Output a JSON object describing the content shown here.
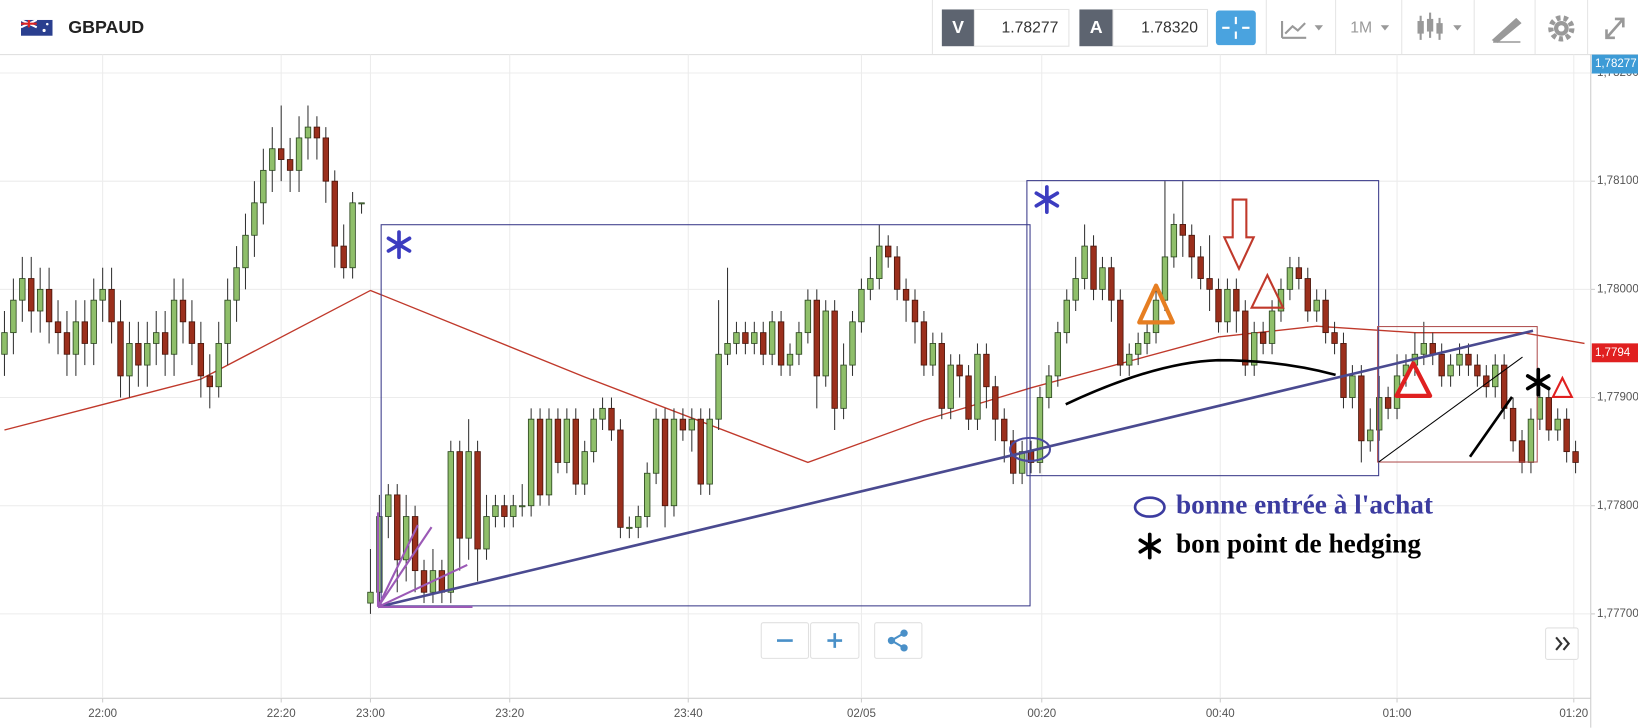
{
  "toolbar": {
    "symbol": "GBPAUD",
    "bid_label": "V",
    "bid": "1.78277",
    "ask_label": "A",
    "ask": "1.78320",
    "timeframe": "1M"
  },
  "chart_data": {
    "type": "candlestick",
    "up_color": "#8fbf6a",
    "down_color": "#9b2f1c",
    "xlim": [
      -0.5,
      177.7
    ],
    "xticks": [
      {
        "value": 11,
        "label": "22:00"
      },
      {
        "value": 31,
        "label": "22:20"
      },
      {
        "value": 41,
        "label": "23:00"
      },
      {
        "value": 56.6,
        "label": "23:20"
      },
      {
        "value": 76.6,
        "label": "23:40"
      },
      {
        "value": 96,
        "label": "02/05"
      },
      {
        "value": 116.2,
        "label": "00:20"
      },
      {
        "value": 136.2,
        "label": "00:40"
      },
      {
        "value": 156,
        "label": "01:00"
      },
      {
        "value": 175.8,
        "label": "01:20"
      }
    ],
    "ylim": [
      1.77622,
      1.78217
    ],
    "yticks": [
      {
        "value": 1.777,
        "label": "1,77700"
      },
      {
        "value": 1.778,
        "label": "1,77800"
      },
      {
        "value": 1.779,
        "label": "1,77900"
      },
      {
        "value": 1.78,
        "label": "1,78000"
      },
      {
        "value": 1.781,
        "label": "1,78100"
      },
      {
        "value": 1.782,
        "label": "1,78200"
      }
    ],
    "grid": true,
    "overlay": {
      "color": "#c0392b",
      "x": [
        0,
        22,
        41,
        65,
        90,
        103,
        115,
        136,
        147,
        158,
        170,
        177
      ],
      "values": [
        1.7787,
        1.77917,
        1.77999,
        1.77919,
        1.7784,
        1.77879,
        1.77909,
        1.77956,
        1.77966,
        1.7796,
        1.7796,
        1.7795
      ]
    },
    "ohlc": [
      [
        1.7794,
        1.7798,
        1.7792,
        1.7796
      ],
      [
        1.7796,
        1.7801,
        1.7794,
        1.7799
      ],
      [
        1.7799,
        1.7803,
        1.7797,
        1.7801
      ],
      [
        1.7801,
        1.7803,
        1.7796,
        1.7798
      ],
      [
        1.7798,
        1.7802,
        1.7796,
        1.78
      ],
      [
        1.78,
        1.7802,
        1.7795,
        1.7797
      ],
      [
        1.7797,
        1.7799,
        1.7794,
        1.7796
      ],
      [
        1.7796,
        1.7798,
        1.7792,
        1.7794
      ],
      [
        1.7794,
        1.7799,
        1.7792,
        1.7797
      ],
      [
        1.7797,
        1.7799,
        1.7793,
        1.7795
      ],
      [
        1.7795,
        1.7801,
        1.7793,
        1.7799
      ],
      [
        1.7799,
        1.7802,
        1.7797,
        1.78
      ],
      [
        1.78,
        1.7802,
        1.7795,
        1.7797
      ],
      [
        1.7797,
        1.7799,
        1.779,
        1.7792
      ],
      [
        1.7792,
        1.7797,
        1.779,
        1.7795
      ],
      [
        1.7795,
        1.7797,
        1.7791,
        1.7793
      ],
      [
        1.7793,
        1.7797,
        1.7791,
        1.7795
      ],
      [
        1.7795,
        1.7798,
        1.7793,
        1.7796
      ],
      [
        1.7796,
        1.7798,
        1.7792,
        1.7794
      ],
      [
        1.7794,
        1.7801,
        1.7792,
        1.7799
      ],
      [
        1.7799,
        1.7801,
        1.7795,
        1.7797
      ],
      [
        1.7797,
        1.7799,
        1.7793,
        1.7795
      ],
      [
        1.7795,
        1.7797,
        1.779,
        1.7792
      ],
      [
        1.7792,
        1.7794,
        1.7789,
        1.7791
      ],
      [
        1.7791,
        1.7797,
        1.779,
        1.7795
      ],
      [
        1.7795,
        1.7801,
        1.7793,
        1.7799
      ],
      [
        1.7799,
        1.7804,
        1.7797,
        1.7802
      ],
      [
        1.7802,
        1.7807,
        1.78,
        1.7805
      ],
      [
        1.7805,
        1.781,
        1.7803,
        1.7808
      ],
      [
        1.7808,
        1.7813,
        1.7806,
        1.7811
      ],
      [
        1.7811,
        1.7815,
        1.7809,
        1.7813
      ],
      [
        1.7813,
        1.7817,
        1.781,
        1.7812
      ],
      [
        1.7812,
        1.7814,
        1.7809,
        1.7811
      ],
      [
        1.7811,
        1.7816,
        1.7809,
        1.7814
      ],
      [
        1.7814,
        1.7817,
        1.7812,
        1.7815
      ],
      [
        1.7815,
        1.7816,
        1.7812,
        1.7814
      ],
      [
        1.7814,
        1.7815,
        1.7808,
        1.781
      ],
      [
        1.781,
        1.7811,
        1.7802,
        1.7804
      ],
      [
        1.7804,
        1.7806,
        1.7801,
        1.7802
      ],
      [
        1.7802,
        1.7809,
        1.7801,
        1.7808
      ],
      [
        1.7808,
        1.7808,
        1.7807,
        1.7808
      ],
      [
        1.7771,
        1.7776,
        1.777,
        1.7772
      ],
      [
        1.7772,
        1.7781,
        1.7771,
        1.7779
      ],
      [
        1.7779,
        1.7782,
        1.7777,
        1.7781
      ],
      [
        1.7781,
        1.7782,
        1.7772,
        1.7775
      ],
      [
        1.7775,
        1.7781,
        1.7773,
        1.7779
      ],
      [
        1.7779,
        1.778,
        1.7772,
        1.7774
      ],
      [
        1.7774,
        1.7775,
        1.7771,
        1.7772
      ],
      [
        1.7772,
        1.7776,
        1.7771,
        1.7774
      ],
      [
        1.7774,
        1.7775,
        1.7771,
        1.7772
      ],
      [
        1.7772,
        1.7786,
        1.7771,
        1.7785
      ],
      [
        1.7785,
        1.7786,
        1.7774,
        1.7777
      ],
      [
        1.7777,
        1.7788,
        1.7775,
        1.7785
      ],
      [
        1.7785,
        1.7786,
        1.7773,
        1.7776
      ],
      [
        1.7776,
        1.7781,
        1.7775,
        1.7779
      ],
      [
        1.7779,
        1.7781,
        1.7778,
        1.778
      ],
      [
        1.778,
        1.7781,
        1.7778,
        1.7779
      ],
      [
        1.7779,
        1.7781,
        1.7778,
        1.778
      ],
      [
        1.778,
        1.7782,
        1.7779,
        1.778
      ],
      [
        1.778,
        1.7789,
        1.7779,
        1.7788
      ],
      [
        1.7788,
        1.7789,
        1.778,
        1.7781
      ],
      [
        1.7781,
        1.7789,
        1.778,
        1.7788
      ],
      [
        1.7788,
        1.7789,
        1.7783,
        1.7784
      ],
      [
        1.7784,
        1.7789,
        1.7783,
        1.7788
      ],
      [
        1.7788,
        1.7789,
        1.7781,
        1.7782
      ],
      [
        1.7782,
        1.7786,
        1.7781,
        1.7785
      ],
      [
        1.7785,
        1.7789,
        1.7784,
        1.7788
      ],
      [
        1.7788,
        1.779,
        1.7787,
        1.7789
      ],
      [
        1.7789,
        1.779,
        1.7786,
        1.7787
      ],
      [
        1.7787,
        1.7788,
        1.7777,
        1.7778
      ],
      [
        1.7778,
        1.7779,
        1.7777,
        1.7778
      ],
      [
        1.7778,
        1.778,
        1.7777,
        1.7779
      ],
      [
        1.7779,
        1.7784,
        1.7778,
        1.7783
      ],
      [
        1.7783,
        1.7789,
        1.7782,
        1.7788
      ],
      [
        1.7788,
        1.7789,
        1.7778,
        1.778
      ],
      [
        1.778,
        1.7789,
        1.7779,
        1.7788
      ],
      [
        1.7788,
        1.7789,
        1.7786,
        1.7787
      ],
      [
        1.7787,
        1.7789,
        1.7785,
        1.7788
      ],
      [
        1.7788,
        1.7789,
        1.7781,
        1.7782
      ],
      [
        1.7782,
        1.7789,
        1.7781,
        1.7788
      ],
      [
        1.7788,
        1.7799,
        1.7787,
        1.7794
      ],
      [
        1.7794,
        1.7802,
        1.7793,
        1.7795
      ],
      [
        1.7795,
        1.7797,
        1.7794,
        1.7796
      ],
      [
        1.7796,
        1.7797,
        1.7794,
        1.7795
      ],
      [
        1.7795,
        1.7797,
        1.7794,
        1.7796
      ],
      [
        1.7796,
        1.7797,
        1.7793,
        1.7794
      ],
      [
        1.7794,
        1.7798,
        1.7793,
        1.7797
      ],
      [
        1.7797,
        1.7798,
        1.7792,
        1.7793
      ],
      [
        1.7793,
        1.7795,
        1.7792,
        1.7794
      ],
      [
        1.7794,
        1.7797,
        1.7793,
        1.7796
      ],
      [
        1.7796,
        1.78,
        1.7795,
        1.7799
      ],
      [
        1.7799,
        1.78,
        1.7789,
        1.7792
      ],
      [
        1.7792,
        1.7799,
        1.7791,
        1.7798
      ],
      [
        1.7798,
        1.7799,
        1.7787,
        1.7789
      ],
      [
        1.7789,
        1.7795,
        1.7788,
        1.7793
      ],
      [
        1.7793,
        1.7798,
        1.7792,
        1.7797
      ],
      [
        1.7797,
        1.7801,
        1.7796,
        1.78
      ],
      [
        1.78,
        1.7803,
        1.7799,
        1.7801
      ],
      [
        1.7801,
        1.7806,
        1.78,
        1.7804
      ],
      [
        1.7804,
        1.7805,
        1.7802,
        1.7803
      ],
      [
        1.7803,
        1.7804,
        1.7799,
        1.78
      ],
      [
        1.78,
        1.7801,
        1.7797,
        1.7799
      ],
      [
        1.7799,
        1.78,
        1.7795,
        1.7797
      ],
      [
        1.7797,
        1.7798,
        1.7792,
        1.7793
      ],
      [
        1.7793,
        1.7796,
        1.7792,
        1.7795
      ],
      [
        1.7795,
        1.7796,
        1.7788,
        1.7789
      ],
      [
        1.7789,
        1.7794,
        1.7788,
        1.7793
      ],
      [
        1.7793,
        1.7794,
        1.779,
        1.7792
      ],
      [
        1.7792,
        1.7793,
        1.7787,
        1.7788
      ],
      [
        1.7788,
        1.7795,
        1.7787,
        1.7794
      ],
      [
        1.7794,
        1.7795,
        1.7789,
        1.7791
      ],
      [
        1.7791,
        1.7792,
        1.7786,
        1.7788
      ],
      [
        1.7788,
        1.7789,
        1.7784,
        1.7786
      ],
      [
        1.7786,
        1.7787,
        1.7782,
        1.7783
      ],
      [
        1.7783,
        1.7786,
        1.7782,
        1.7785
      ],
      [
        1.7785,
        1.7786,
        1.7783,
        1.7784
      ],
      [
        1.7784,
        1.7791,
        1.7783,
        1.779
      ],
      [
        1.779,
        1.7793,
        1.7789,
        1.7792
      ],
      [
        1.7792,
        1.7797,
        1.7791,
        1.7796
      ],
      [
        1.7796,
        1.78,
        1.7795,
        1.7799
      ],
      [
        1.7799,
        1.7803,
        1.7798,
        1.7801
      ],
      [
        1.7801,
        1.7806,
        1.78,
        1.7804
      ],
      [
        1.7804,
        1.7805,
        1.7799,
        1.78
      ],
      [
        1.78,
        1.7803,
        1.7799,
        1.7802
      ],
      [
        1.7802,
        1.7803,
        1.7797,
        1.7799
      ],
      [
        1.7799,
        1.78,
        1.7792,
        1.7793
      ],
      [
        1.7793,
        1.7795,
        1.7792,
        1.7794
      ],
      [
        1.7794,
        1.7796,
        1.7793,
        1.7795
      ],
      [
        1.7795,
        1.7797,
        1.7794,
        1.7796
      ],
      [
        1.7796,
        1.78,
        1.7795,
        1.7799
      ],
      [
        1.7799,
        1.781,
        1.7798,
        1.7803
      ],
      [
        1.7803,
        1.7807,
        1.7802,
        1.7806
      ],
      [
        1.7806,
        1.781,
        1.7803,
        1.7805
      ],
      [
        1.7805,
        1.7806,
        1.7801,
        1.7803
      ],
      [
        1.7803,
        1.7804,
        1.78,
        1.7801
      ],
      [
        1.7801,
        1.7805,
        1.7798,
        1.78
      ],
      [
        1.78,
        1.7801,
        1.7796,
        1.7797
      ],
      [
        1.7797,
        1.7801,
        1.7796,
        1.78
      ],
      [
        1.78,
        1.7801,
        1.7796,
        1.7798
      ],
      [
        1.7798,
        1.7799,
        1.7792,
        1.7793
      ],
      [
        1.7793,
        1.7797,
        1.7792,
        1.7796
      ],
      [
        1.7796,
        1.7797,
        1.7794,
        1.7795
      ],
      [
        1.7795,
        1.7799,
        1.7794,
        1.7798
      ],
      [
        1.7798,
        1.7801,
        1.7797,
        1.78
      ],
      [
        1.78,
        1.7803,
        1.7799,
        1.7802
      ],
      [
        1.7802,
        1.7803,
        1.78,
        1.7801
      ],
      [
        1.7801,
        1.7802,
        1.7797,
        1.7798
      ],
      [
        1.7798,
        1.78,
        1.7797,
        1.7799
      ],
      [
        1.7799,
        1.78,
        1.7795,
        1.7796
      ],
      [
        1.7796,
        1.7797,
        1.7794,
        1.7795
      ],
      [
        1.7795,
        1.7796,
        1.7789,
        1.779
      ],
      [
        1.779,
        1.7793,
        1.7789,
        1.7792
      ],
      [
        1.7792,
        1.7793,
        1.7784,
        1.7786
      ],
      [
        1.7786,
        1.7789,
        1.7785,
        1.7787
      ],
      [
        1.7787,
        1.7792,
        1.7786,
        1.779
      ],
      [
        1.779,
        1.7791,
        1.7788,
        1.7789
      ],
      [
        1.7789,
        1.7794,
        1.7788,
        1.7792
      ],
      [
        1.7792,
        1.7794,
        1.7791,
        1.7793
      ],
      [
        1.7793,
        1.7796,
        1.7792,
        1.7794
      ],
      [
        1.7794,
        1.7797,
        1.7793,
        1.7795
      ],
      [
        1.7795,
        1.7796,
        1.7793,
        1.7794
      ],
      [
        1.7794,
        1.7795,
        1.7791,
        1.7792
      ],
      [
        1.7792,
        1.7794,
        1.7791,
        1.7793
      ],
      [
        1.7793,
        1.7795,
        1.7792,
        1.7794
      ],
      [
        1.7794,
        1.7795,
        1.7792,
        1.7793
      ],
      [
        1.7793,
        1.7794,
        1.7791,
        1.7792
      ],
      [
        1.7792,
        1.7793,
        1.779,
        1.7791
      ],
      [
        1.7791,
        1.7794,
        1.779,
        1.7793
      ],
      [
        1.7793,
        1.7794,
        1.7788,
        1.7789
      ],
      [
        1.7789,
        1.779,
        1.7785,
        1.7786
      ],
      [
        1.7786,
        1.7787,
        1.7783,
        1.7784
      ],
      [
        1.7784,
        1.7789,
        1.7783,
        1.7788
      ],
      [
        1.7788,
        1.7791,
        1.7787,
        1.779
      ],
      [
        1.779,
        1.7791,
        1.7786,
        1.7787
      ],
      [
        1.7787,
        1.7789,
        1.7786,
        1.7788
      ],
      [
        1.7788,
        1.7789,
        1.7784,
        1.7785
      ],
      [
        1.7785,
        1.7786,
        1.7783,
        1.7784
      ]
    ],
    "price_tags": [
      {
        "label": "1,78277",
        "color": "#3d9bd6"
      },
      {
        "label": "1,7794",
        "color": "#e02020"
      }
    ],
    "annotations": {
      "entry": "bonne entrée à l'achat",
      "hedge": "bon point de hedging"
    }
  }
}
